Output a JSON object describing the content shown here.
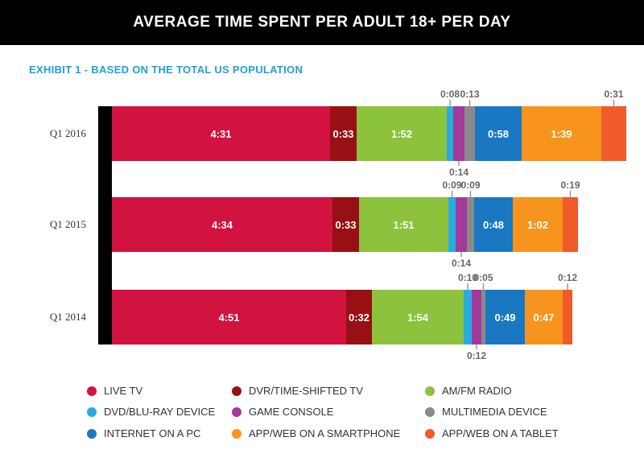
{
  "title": "AVERAGE TIME SPENT PER ADULT 18+ PER DAY",
  "subtitle": "EXHIBIT 1 - BASED ON THE TOTAL US POPULATION",
  "colors": {
    "LIVE TV": "#d2123f",
    "DVR/TIME-SHIFTED TV": "#980f14",
    "AM/FM RADIO": "#8cc23c",
    "DVD/BLU-RAY DEVICE": "#29abe2",
    "GAME CONSOLE": "#a23a9c",
    "MULTIMEDIA DEVICE": "#8a8a8a",
    "INTERNET ON A PC": "#1a78c2",
    "APP/WEB ON A SMARTPHONE": "#f7941d",
    "APP/WEB ON A TABLET": "#f15a29"
  },
  "legend": [
    "LIVE TV",
    "DVR/TIME-SHIFTED TV",
    "AM/FM RADIO",
    "DVD/BLU-RAY DEVICE",
    "GAME CONSOLE",
    "MULTIMEDIA DEVICE",
    "INTERNET ON A PC",
    "APP/WEB ON A SMARTPHONE",
    "APP/WEB ON A TABLET"
  ],
  "chart_data": {
    "type": "bar",
    "orientation": "horizontal",
    "stacked": true,
    "unit": "hours:minutes",
    "grid": false,
    "legend_position": "bottom",
    "categories": [
      "Q1 2016",
      "Q1 2015",
      "Q1 2014"
    ],
    "series": [
      {
        "name": "LIVE TV",
        "values": [
          271,
          274,
          291
        ],
        "labels": [
          "4:31",
          "4:34",
          "4:51"
        ]
      },
      {
        "name": "DVR/TIME-SHIFTED TV",
        "values": [
          33,
          33,
          32
        ],
        "labels": [
          "0:33",
          "0:33",
          "0:32"
        ]
      },
      {
        "name": "AM/FM RADIO",
        "values": [
          112,
          111,
          114
        ],
        "labels": [
          "1:52",
          "1:51",
          "1:54"
        ]
      },
      {
        "name": "DVD/BLU-RAY DEVICE",
        "values": [
          8,
          9,
          10
        ],
        "labels": [
          "0:08",
          "0:09",
          "0:10"
        ]
      },
      {
        "name": "GAME CONSOLE",
        "values": [
          14,
          14,
          12
        ],
        "labels": [
          "0:14",
          "0:14",
          "0:12"
        ]
      },
      {
        "name": "MULTIMEDIA DEVICE",
        "values": [
          13,
          9,
          5
        ],
        "labels": [
          "0:13",
          "0:09",
          "0:05"
        ]
      },
      {
        "name": "INTERNET ON A PC",
        "values": [
          58,
          48,
          49
        ],
        "labels": [
          "0:58",
          "0:48",
          "0:49"
        ]
      },
      {
        "name": "APP/WEB ON A SMARTPHONE",
        "values": [
          99,
          62,
          47
        ],
        "labels": [
          "1:39",
          "1:02",
          "0:47"
        ]
      },
      {
        "name": "APP/WEB ON A TABLET",
        "values": [
          31,
          19,
          12
        ],
        "labels": [
          "0:31",
          "0:19",
          "0:12"
        ]
      }
    ]
  }
}
